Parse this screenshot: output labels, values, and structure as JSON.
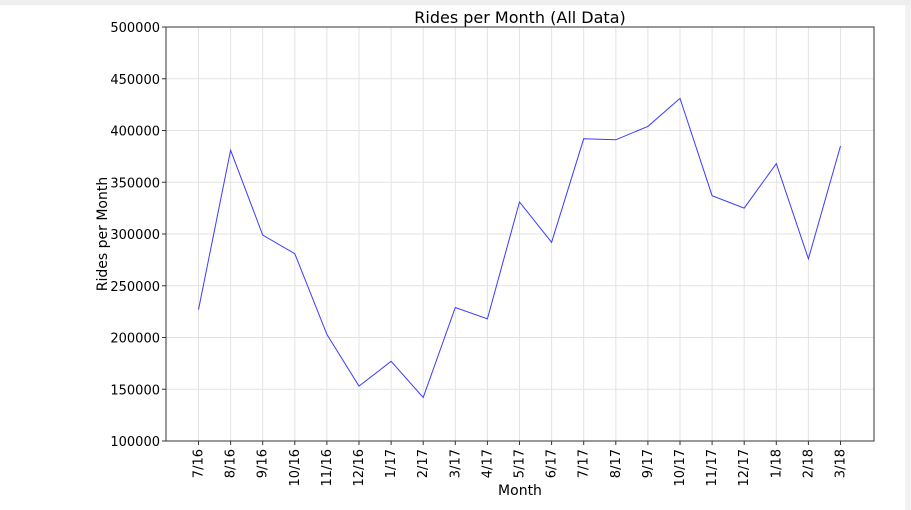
{
  "chart_data": {
    "type": "line",
    "title": "Rides per Month (All Data)",
    "xlabel": "Month",
    "ylabel": "Rides per Month",
    "categories": [
      "7/16",
      "8/16",
      "9/16",
      "10/16",
      "11/16",
      "12/16",
      "1/17",
      "2/17",
      "3/17",
      "4/17",
      "5/17",
      "6/17",
      "7/17",
      "8/17",
      "9/17",
      "10/17",
      "11/17",
      "12/17",
      "1/18",
      "2/18",
      "3/18"
    ],
    "series": [
      {
        "values": [
          227000,
          381000,
          299000,
          281000,
          203000,
          153000,
          177000,
          142000,
          229000,
          218000,
          331000,
          292000,
          392000,
          391000,
          404000,
          431000,
          337000,
          325000,
          368000,
          276000,
          385000
        ]
      }
    ],
    "ylim": [
      100000,
      500000
    ],
    "yticks": [
      100000,
      150000,
      200000,
      250000,
      300000,
      350000,
      400000,
      450000,
      500000
    ],
    "grid": true,
    "line_color": "#3b3bff"
  }
}
